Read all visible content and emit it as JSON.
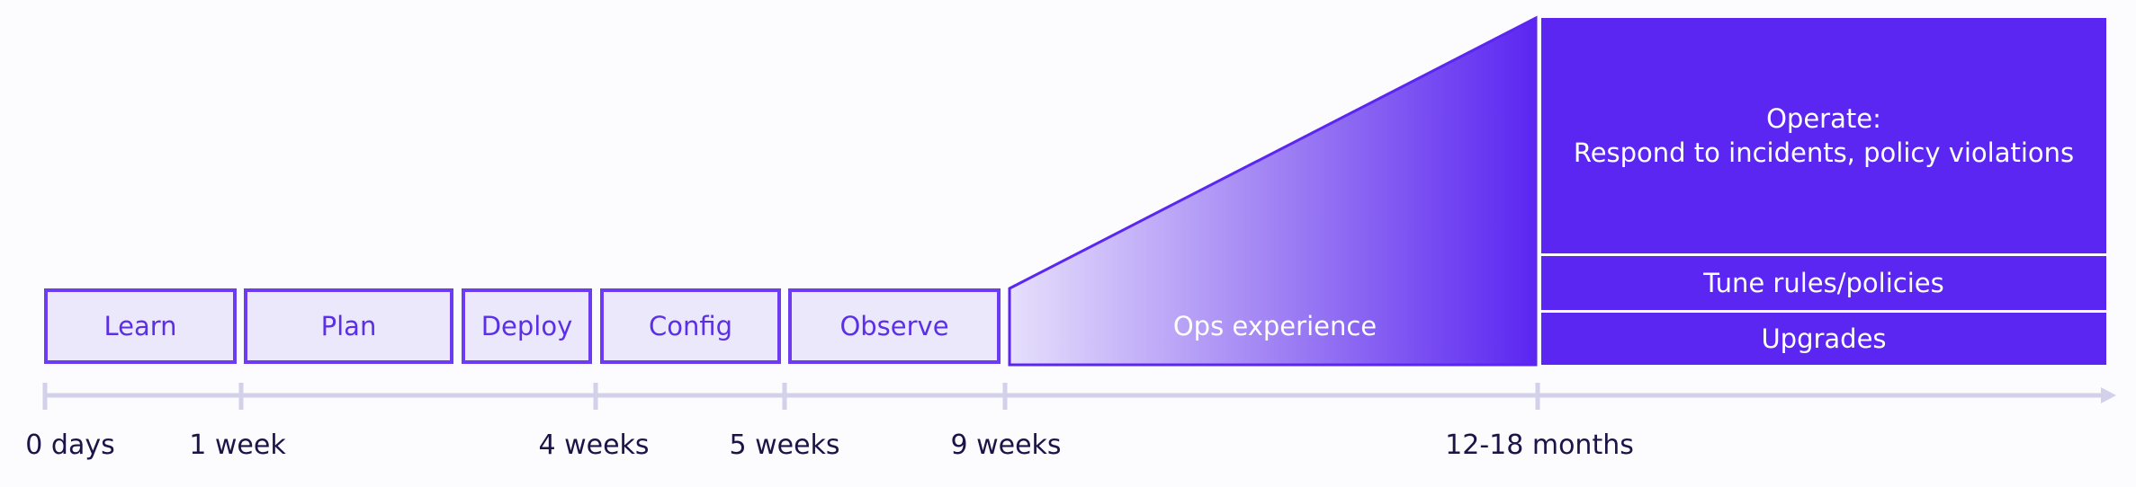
{
  "stages": [
    {
      "label": "Learn"
    },
    {
      "label": "Plan"
    },
    {
      "label": "Deploy"
    },
    {
      "label": "Config"
    },
    {
      "label": "Observe"
    }
  ],
  "ops_experience": {
    "label": "Ops experience"
  },
  "operate": {
    "title": "Operate:",
    "description": "Respond to incidents, policy violations",
    "tune": "Tune rules/policies",
    "upgrades": "Upgrades"
  },
  "timeline": {
    "ticks": [
      "0 days",
      "1 week",
      "4 weeks",
      "5 weeks",
      "9 weeks",
      "12-18 months"
    ]
  },
  "colors": {
    "accent": "#5b26f1",
    "stage_fill": "#ece8fc",
    "stage_border": "#6e3cf0",
    "axis": "#d3d0ea",
    "text_dark": "#1b1446"
  }
}
